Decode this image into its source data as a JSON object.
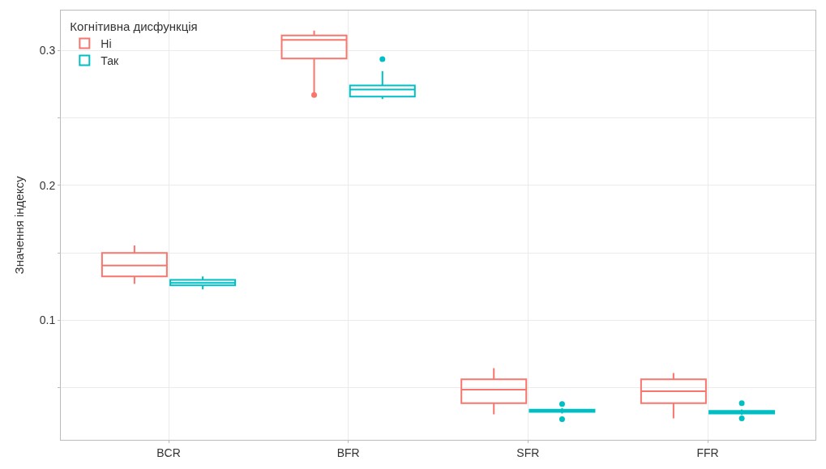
{
  "chart_data": {
    "type": "box",
    "ylabel": "Значення індексу",
    "legend_title": "Когнітивна дисфункція",
    "categories": [
      "BCR",
      "BFR",
      "SFR",
      "FFR"
    ],
    "series": [
      {
        "name": "Ні",
        "color": "#f8766d",
        "boxes": [
          {
            "low": 0.127,
            "q1": 0.1325,
            "median": 0.1407,
            "q3": 0.15,
            "high": 0.1555
          },
          {
            "low": 0.268,
            "q1": 0.294,
            "median": 0.3077,
            "q3": 0.311,
            "high": 0.3147,
            "outliers": [
              0.267
            ]
          },
          {
            "low": 0.0304,
            "q1": 0.0386,
            "median": 0.0487,
            "q3": 0.0563,
            "high": 0.0646
          },
          {
            "low": 0.0274,
            "q1": 0.0386,
            "median": 0.0475,
            "q3": 0.0563,
            "high": 0.061
          }
        ]
      },
      {
        "name": "Так",
        "color": "#00bfc4",
        "boxes": [
          {
            "low": 0.123,
            "q1": 0.126,
            "median": 0.1277,
            "q3": 0.13,
            "high": 0.1325
          },
          {
            "low": 0.264,
            "q1": 0.2658,
            "median": 0.271,
            "q3": 0.274,
            "high": 0.2847,
            "outliers": [
              0.2935
            ]
          },
          {
            "low": 0.031,
            "q1": 0.0322,
            "median": 0.033,
            "q3": 0.0339,
            "high": 0.035,
            "outliers": [
              0.038,
              0.0268
            ]
          },
          {
            "low": 0.03,
            "q1": 0.031,
            "median": 0.032,
            "q3": 0.033,
            "high": 0.034,
            "outliers": [
              0.0386,
              0.0274
            ]
          }
        ]
      }
    ],
    "ylim": [
      0.0115,
      0.3295
    ],
    "yticks": [
      {
        "value": 0.05,
        "label": null
      },
      0.1,
      {
        "value": 0.15,
        "label": null
      },
      0.2,
      {
        "value": 0.25,
        "label": null
      },
      0.3
    ],
    "grid": true,
    "legend": "top left"
  }
}
